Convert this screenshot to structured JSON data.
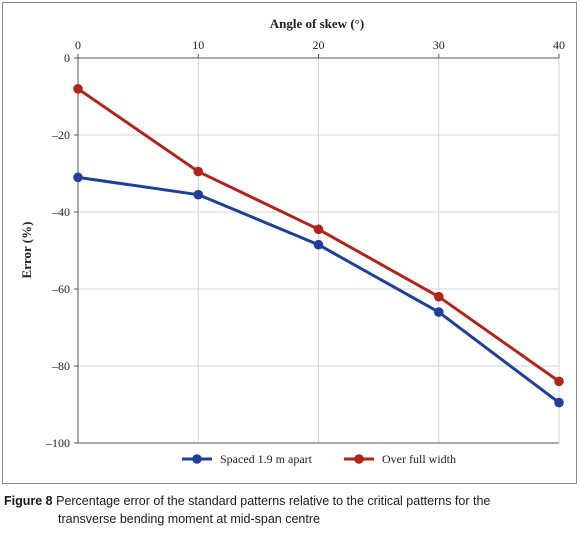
{
  "chart_data": {
    "type": "line",
    "xlabel": "Angle of skew (°)",
    "ylabel": "Error (%)",
    "x": [
      0,
      10,
      20,
      30,
      40
    ],
    "xticks": [
      "0",
      "10",
      "20",
      "30",
      "40"
    ],
    "yticks": [
      "0",
      "–20",
      "–40",
      "–60",
      "–80",
      "–100"
    ],
    "xlim": [
      0,
      40
    ],
    "ylim": [
      -100,
      0
    ],
    "grid": true,
    "legend_position": "bottom",
    "series": [
      {
        "name": "Spaced 1.9 m apart",
        "color": "#1f3f9c",
        "values": [
          -31,
          -35.5,
          -48.5,
          -66,
          -89.5
        ]
      },
      {
        "name": "Over full width",
        "color": "#b1241a",
        "values": [
          -8,
          -29.5,
          -44.5,
          -62,
          -84
        ]
      }
    ]
  },
  "caption": {
    "label": "Figure 8",
    "line1": "Percentage error of the standard patterns relative to the critical patterns for the",
    "line2": "transverse bending moment at mid-span centre"
  }
}
